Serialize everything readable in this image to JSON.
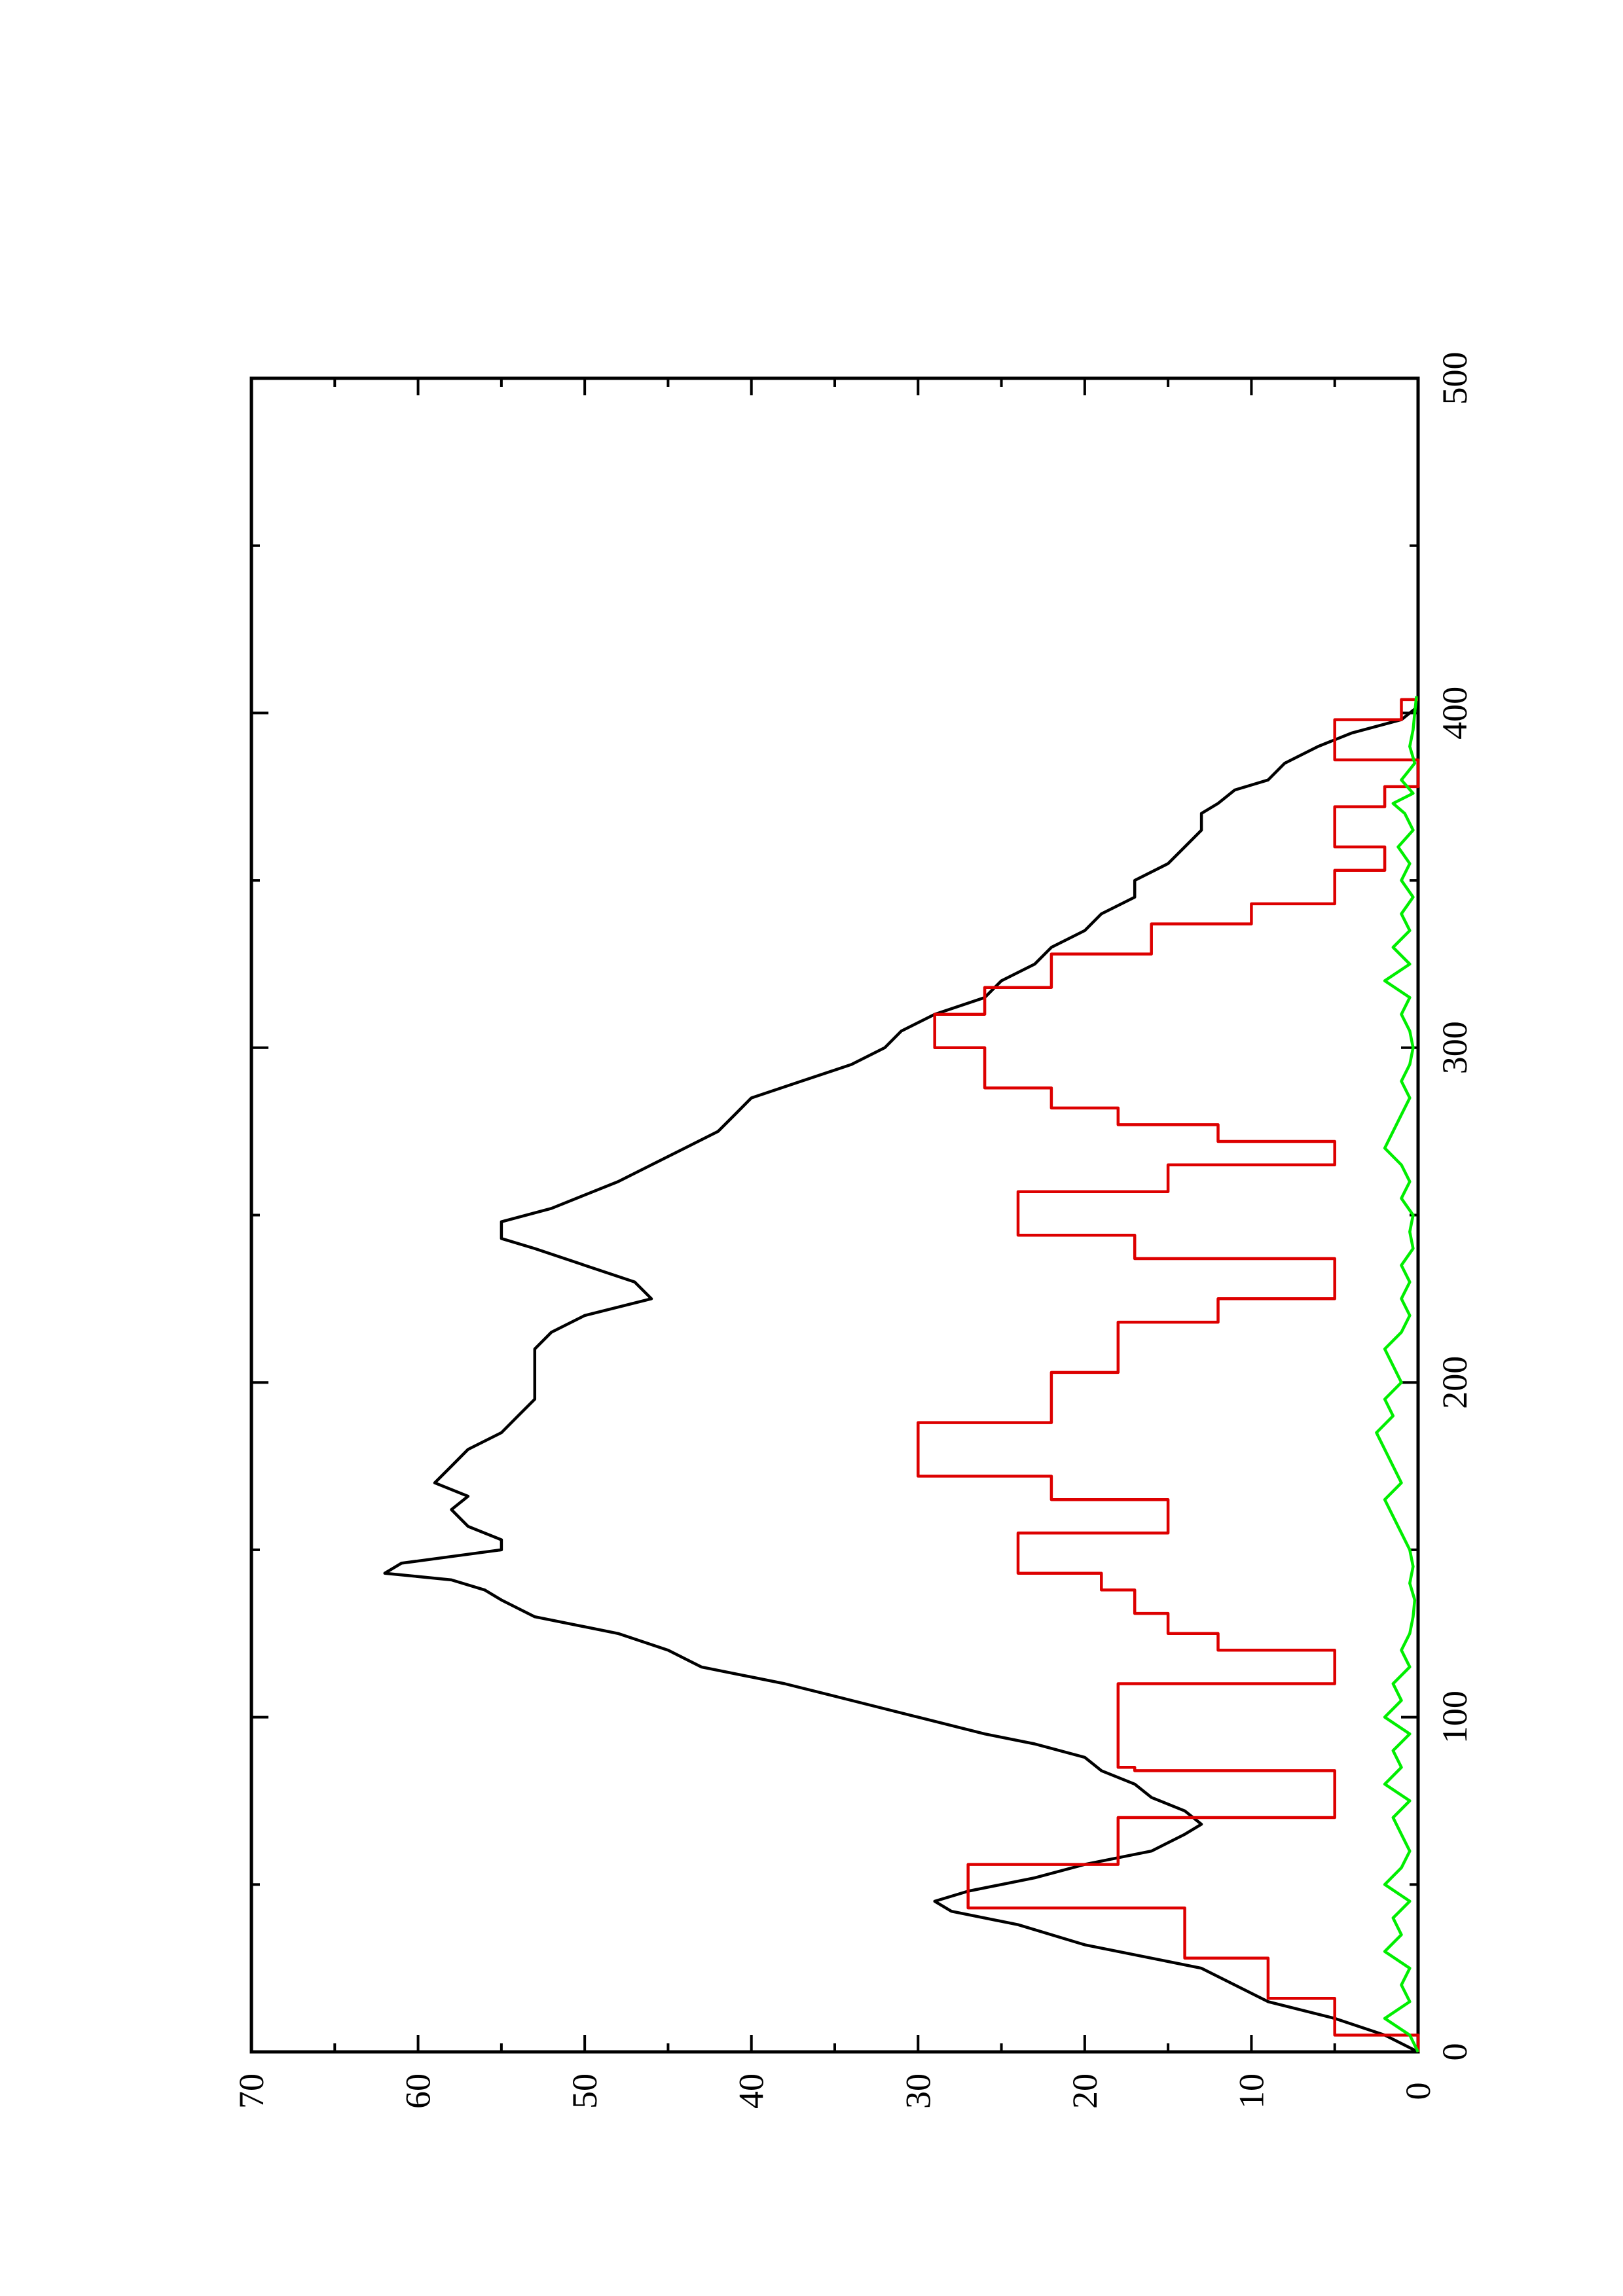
{
  "chart_data": {
    "type": "line",
    "orientation": "rotated-90-ccw",
    "title": "",
    "xlabel": "",
    "ylabel": "",
    "xlim": [
      0,
      500
    ],
    "ylim": [
      0,
      70
    ],
    "x_major_ticks": [
      0,
      100,
      200,
      300,
      400,
      500
    ],
    "x_minor_ticks": [
      50,
      150,
      250,
      350,
      450
    ],
    "x_tick_labels": [
      "0",
      "100",
      "200",
      "300",
      "400",
      "500"
    ],
    "y_major_ticks": [
      0,
      10,
      20,
      30,
      40,
      50,
      60,
      70
    ],
    "y_minor_ticks": [
      5,
      15,
      25,
      35,
      45,
      55,
      65
    ],
    "y_tick_labels": [
      "0",
      "10",
      "20",
      "30",
      "40",
      "50",
      "60",
      "70"
    ],
    "grid": false,
    "legend": "none",
    "series": [
      {
        "color": "#000000",
        "style": "line",
        "points": [
          [
            0,
            0
          ],
          [
            5,
            2
          ],
          [
            10,
            5
          ],
          [
            15,
            9
          ],
          [
            20,
            11
          ],
          [
            25,
            13
          ],
          [
            28,
            16
          ],
          [
            32,
            20
          ],
          [
            38,
            24
          ],
          [
            42,
            28
          ],
          [
            45,
            29
          ],
          [
            48,
            27
          ],
          [
            52,
            23
          ],
          [
            56,
            20
          ],
          [
            60,
            16
          ],
          [
            65,
            14
          ],
          [
            68,
            13
          ],
          [
            72,
            14
          ],
          [
            76,
            16
          ],
          [
            80,
            17
          ],
          [
            84,
            19
          ],
          [
            88,
            20
          ],
          [
            92,
            23
          ],
          [
            95,
            26
          ],
          [
            100,
            30
          ],
          [
            105,
            34
          ],
          [
            110,
            38
          ],
          [
            115,
            43
          ],
          [
            120,
            45
          ],
          [
            125,
            48
          ],
          [
            130,
            53
          ],
          [
            135,
            55
          ],
          [
            138,
            56
          ],
          [
            141,
            58
          ],
          [
            143,
            62
          ],
          [
            146,
            61
          ],
          [
            150,
            55
          ],
          [
            153,
            55
          ],
          [
            157,
            57
          ],
          [
            162,
            58
          ],
          [
            166,
            57
          ],
          [
            170,
            59
          ],
          [
            175,
            58
          ],
          [
            180,
            57
          ],
          [
            185,
            55
          ],
          [
            190,
            54
          ],
          [
            195,
            53
          ],
          [
            200,
            53
          ],
          [
            205,
            53
          ],
          [
            210,
            53
          ],
          [
            215,
            52
          ],
          [
            220,
            50
          ],
          [
            225,
            46
          ],
          [
            230,
            47
          ],
          [
            235,
            50
          ],
          [
            240,
            53
          ],
          [
            243,
            55
          ],
          [
            248,
            55
          ],
          [
            252,
            52
          ],
          [
            256,
            50
          ],
          [
            260,
            48
          ],
          [
            265,
            46
          ],
          [
            270,
            44
          ],
          [
            275,
            42
          ],
          [
            280,
            41
          ],
          [
            285,
            40
          ],
          [
            290,
            37
          ],
          [
            295,
            34
          ],
          [
            300,
            32
          ],
          [
            305,
            31
          ],
          [
            310,
            29
          ],
          [
            315,
            26
          ],
          [
            320,
            25
          ],
          [
            325,
            23
          ],
          [
            330,
            22
          ],
          [
            335,
            20
          ],
          [
            340,
            19
          ],
          [
            345,
            17
          ],
          [
            350,
            17
          ],
          [
            355,
            15
          ],
          [
            360,
            14
          ],
          [
            365,
            13
          ],
          [
            370,
            13
          ],
          [
            373,
            12
          ],
          [
            377,
            11
          ],
          [
            380,
            9
          ],
          [
            385,
            8
          ],
          [
            390,
            6
          ],
          [
            394,
            4
          ],
          [
            398,
            1
          ],
          [
            402,
            0
          ],
          [
            406,
            0
          ]
        ]
      },
      {
        "color": "#dd0000",
        "style": "step",
        "points": [
          [
            0,
            0
          ],
          [
            5,
            5
          ],
          [
            14,
            5
          ],
          [
            16,
            9
          ],
          [
            28,
            14
          ],
          [
            43,
            27
          ],
          [
            56,
            18
          ],
          [
            70,
            5
          ],
          [
            73,
            5
          ],
          [
            84,
            17
          ],
          [
            85,
            18
          ],
          [
            95,
            18
          ],
          [
            110,
            5
          ],
          [
            112,
            5
          ],
          [
            120,
            12
          ],
          [
            125,
            15
          ],
          [
            131,
            17
          ],
          [
            138,
            19
          ],
          [
            143,
            24
          ],
          [
            155,
            15
          ],
          [
            165,
            22
          ],
          [
            172,
            30
          ],
          [
            188,
            22
          ],
          [
            193,
            22
          ],
          [
            203,
            18
          ],
          [
            208,
            18
          ],
          [
            218,
            12
          ],
          [
            225,
            5
          ],
          [
            228,
            5
          ],
          [
            237,
            17
          ],
          [
            244,
            24
          ],
          [
            257,
            15
          ],
          [
            265,
            5
          ],
          [
            268,
            5
          ],
          [
            272,
            12
          ],
          [
            277,
            18
          ],
          [
            282,
            22
          ],
          [
            288,
            26
          ],
          [
            295,
            26
          ],
          [
            300,
            29
          ],
          [
            305,
            29
          ],
          [
            310,
            26
          ],
          [
            318,
            22
          ],
          [
            328,
            16
          ],
          [
            337,
            10
          ],
          [
            343,
            5
          ],
          [
            348,
            5
          ],
          [
            353,
            2
          ],
          [
            360,
            5
          ],
          [
            365,
            5
          ],
          [
            372,
            2
          ],
          [
            378,
            0
          ],
          [
            380,
            0
          ],
          [
            386,
            5
          ],
          [
            392,
            5
          ],
          [
            398,
            1
          ],
          [
            404,
            0
          ]
        ]
      },
      {
        "color": "#00ee00",
        "style": "line",
        "points": [
          [
            0,
            0
          ],
          [
            5,
            0.5
          ],
          [
            10,
            2
          ],
          [
            15,
            0.5
          ],
          [
            20,
            1
          ],
          [
            25,
            0.5
          ],
          [
            30,
            2
          ],
          [
            35,
            1
          ],
          [
            40,
            1.5
          ],
          [
            45,
            0.5
          ],
          [
            50,
            2
          ],
          [
            55,
            1
          ],
          [
            60,
            0.5
          ],
          [
            65,
            1
          ],
          [
            70,
            1.5
          ],
          [
            75,
            0.5
          ],
          [
            80,
            2
          ],
          [
            85,
            1
          ],
          [
            90,
            1.5
          ],
          [
            95,
            0.5
          ],
          [
            100,
            2
          ],
          [
            105,
            1
          ],
          [
            110,
            1.5
          ],
          [
            115,
            0.5
          ],
          [
            120,
            1
          ],
          [
            125,
            0.5
          ],
          [
            130,
            0.3
          ],
          [
            135,
            0.2
          ],
          [
            140,
            0.5
          ],
          [
            145,
            0.3
          ],
          [
            150,
            0.5
          ],
          [
            155,
            1
          ],
          [
            160,
            1.5
          ],
          [
            165,
            2
          ],
          [
            170,
            1
          ],
          [
            175,
            1.5
          ],
          [
            180,
            2
          ],
          [
            185,
            2.5
          ],
          [
            190,
            1.5
          ],
          [
            195,
            2
          ],
          [
            200,
            1
          ],
          [
            205,
            1.5
          ],
          [
            210,
            2
          ],
          [
            215,
            1
          ],
          [
            220,
            0.5
          ],
          [
            225,
            1
          ],
          [
            230,
            0.5
          ],
          [
            235,
            1
          ],
          [
            240,
            0.3
          ],
          [
            245,
            0.5
          ],
          [
            250,
            0.3
          ],
          [
            255,
            1
          ],
          [
            260,
            0.5
          ],
          [
            265,
            1
          ],
          [
            270,
            2
          ],
          [
            275,
            1.5
          ],
          [
            280,
            1
          ],
          [
            285,
            0.5
          ],
          [
            290,
            1
          ],
          [
            295,
            0.5
          ],
          [
            300,
            0.3
          ],
          [
            305,
            0.5
          ],
          [
            310,
            1
          ],
          [
            315,
            0.5
          ],
          [
            320,
            2
          ],
          [
            325,
            0.5
          ],
          [
            330,
            1.5
          ],
          [
            335,
            0.5
          ],
          [
            340,
            1
          ],
          [
            345,
            0.3
          ],
          [
            350,
            1
          ],
          [
            355,
            0.5
          ],
          [
            360,
            1.2
          ],
          [
            365,
            0.3
          ],
          [
            370,
            0.8
          ],
          [
            373,
            1.5
          ],
          [
            376,
            0.3
          ],
          [
            380,
            1
          ],
          [
            385,
            0.2
          ],
          [
            390,
            0.5
          ],
          [
            395,
            0.3
          ],
          [
            400,
            0.2
          ],
          [
            405,
            0.1
          ]
        ]
      }
    ]
  }
}
